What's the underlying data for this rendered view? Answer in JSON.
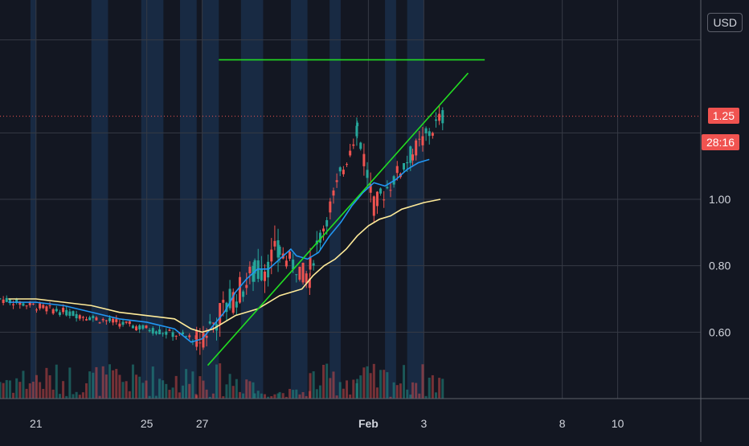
{
  "currency_label": "USD",
  "last_price_label": "1.25",
  "countdown_label": "28:16",
  "chart_data": {
    "type": "candlestick",
    "x_ticks": [
      "21",
      "25",
      "27",
      "Feb",
      "3",
      "8",
      "10"
    ],
    "x_tick_days": [
      -11,
      -7,
      -5,
      1,
      3,
      8,
      10
    ],
    "x_tick_bold": [
      false,
      false,
      false,
      true,
      false,
      false,
      false
    ],
    "y_ticks": [
      0.6,
      0.8,
      1.0
    ],
    "y_tick_labels": [
      "0.60",
      "0.80",
      "1.00"
    ],
    "ylim": [
      0.4,
      1.6
    ],
    "xlim": [
      -12.3,
      13.0
    ],
    "last_price": 1.25,
    "session_shading_days": [
      [
        -11.2,
        -11.0
      ],
      [
        -9.0,
        -8.4
      ],
      [
        -7.2,
        -6.4
      ],
      [
        -5.8,
        -5.2
      ],
      [
        -5.0,
        -4.4
      ],
      [
        -3.6,
        -2.8
      ],
      [
        -1.8,
        -1.2
      ],
      [
        -0.4,
        0.0
      ],
      [
        1.6,
        2.0
      ],
      [
        2.4,
        3.0
      ]
    ],
    "series": [
      {
        "name": "",
        "color": "#2196f3",
        "points": [
          [
            -12.0,
            0.69
          ],
          [
            -11.0,
            0.69
          ],
          [
            -10.0,
            0.68
          ],
          [
            -9.0,
            0.66
          ],
          [
            -8.0,
            0.64
          ],
          [
            -7.0,
            0.63
          ],
          [
            -6.0,
            0.61
          ],
          [
            -5.4,
            0.57
          ],
          [
            -5.0,
            0.58
          ],
          [
            -4.6,
            0.62
          ],
          [
            -4.2,
            0.66
          ],
          [
            -3.8,
            0.72
          ],
          [
            -3.4,
            0.76
          ],
          [
            -3.0,
            0.79
          ],
          [
            -2.6,
            0.79
          ],
          [
            -2.2,
            0.82
          ],
          [
            -1.8,
            0.85
          ],
          [
            -1.6,
            0.83
          ],
          [
            -1.2,
            0.82
          ],
          [
            -0.8,
            0.84
          ],
          [
            -0.4,
            0.89
          ],
          [
            0.0,
            0.93
          ],
          [
            0.4,
            0.98
          ],
          [
            0.8,
            1.02
          ],
          [
            1.2,
            1.05
          ],
          [
            1.6,
            1.04
          ],
          [
            2.0,
            1.06
          ],
          [
            2.4,
            1.09
          ],
          [
            2.8,
            1.11
          ],
          [
            3.2,
            1.12
          ]
        ]
      },
      {
        "name": "",
        "color": "#ffeb99",
        "points": [
          [
            -12.0,
            0.7
          ],
          [
            -11.0,
            0.7
          ],
          [
            -10.0,
            0.69
          ],
          [
            -9.0,
            0.68
          ],
          [
            -8.0,
            0.66
          ],
          [
            -7.0,
            0.65
          ],
          [
            -6.0,
            0.64
          ],
          [
            -5.4,
            0.61
          ],
          [
            -5.0,
            0.6
          ],
          [
            -4.6,
            0.61
          ],
          [
            -4.2,
            0.63
          ],
          [
            -3.8,
            0.65
          ],
          [
            -3.4,
            0.66
          ],
          [
            -3.0,
            0.67
          ],
          [
            -2.6,
            0.69
          ],
          [
            -2.2,
            0.71
          ],
          [
            -1.8,
            0.72
          ],
          [
            -1.4,
            0.73
          ],
          [
            -1.0,
            0.77
          ],
          [
            -0.6,
            0.8
          ],
          [
            -0.2,
            0.82
          ],
          [
            0.2,
            0.85
          ],
          [
            0.6,
            0.89
          ],
          [
            1.0,
            0.92
          ],
          [
            1.4,
            0.94
          ],
          [
            1.8,
            0.95
          ],
          [
            2.2,
            0.97
          ],
          [
            2.6,
            0.98
          ],
          [
            3.0,
            0.99
          ],
          [
            3.6,
            1.0
          ]
        ]
      }
    ],
    "trendlines": [
      {
        "name": "",
        "color": "#22dd22",
        "from": [
          -4.4,
          1.42
        ],
        "to": [
          5.2,
          1.42
        ]
      },
      {
        "name": "",
        "color": "#22dd22",
        "from": [
          -4.8,
          0.5
        ],
        "to": [
          4.6,
          1.38
        ]
      }
    ],
    "candle_segments": [
      {
        "start": -12.3,
        "end": -5.2,
        "o": 0.7,
        "c": 0.58,
        "wiggle": 0.012
      },
      {
        "start": -5.2,
        "end": -3.1,
        "o": 0.57,
        "c": 0.78,
        "wiggle": 0.045
      },
      {
        "start": -3.1,
        "end": -2.2,
        "o": 0.78,
        "c": 0.84,
        "wiggle": 0.05
      },
      {
        "start": -2.2,
        "end": -1.1,
        "o": 0.84,
        "c": 0.76,
        "wiggle": 0.03
      },
      {
        "start": -1.1,
        "end": 0.6,
        "o": 0.8,
        "c": 1.22,
        "wiggle": 0.03
      },
      {
        "start": 0.6,
        "end": 1.2,
        "o": 1.22,
        "c": 0.98,
        "wiggle": 0.04
      },
      {
        "start": 1.2,
        "end": 2.6,
        "o": 0.98,
        "c": 1.14,
        "wiggle": 0.03
      },
      {
        "start": 2.6,
        "end": 3.7,
        "o": 1.14,
        "c": 1.25,
        "wiggle": 0.03
      }
    ],
    "volume_max": 100
  }
}
